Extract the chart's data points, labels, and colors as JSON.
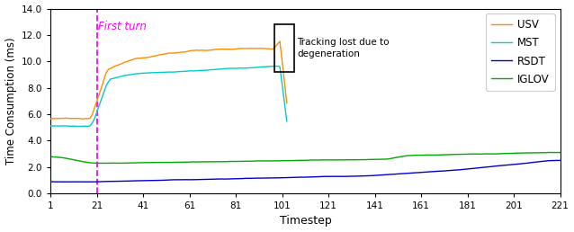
{
  "title": "",
  "xlabel": "Timestep",
  "ylabel": "Time Consumption (ms)",
  "xlim": [
    1,
    221
  ],
  "ylim": [
    0.0,
    14.0
  ],
  "xticks": [
    1,
    21,
    41,
    61,
    81,
    101,
    121,
    141,
    161,
    181,
    201,
    221
  ],
  "yticks": [
    0.0,
    2.0,
    4.0,
    6.0,
    8.0,
    10.0,
    12.0,
    14.0
  ],
  "vline_x": 21,
  "vline_color": "#FF00FF",
  "vline_label": "First turn",
  "annotation_text": "Tracking lost due to\ndegeneration",
  "series_colors": [
    "#FF8C00",
    "#00CCCC",
    "#0000CC",
    "#00AA00"
  ],
  "series_names": [
    "USV",
    "MST",
    "RSDT",
    "IGLOV"
  ],
  "figsize": [
    6.38,
    2.58
  ],
  "dpi": 100
}
